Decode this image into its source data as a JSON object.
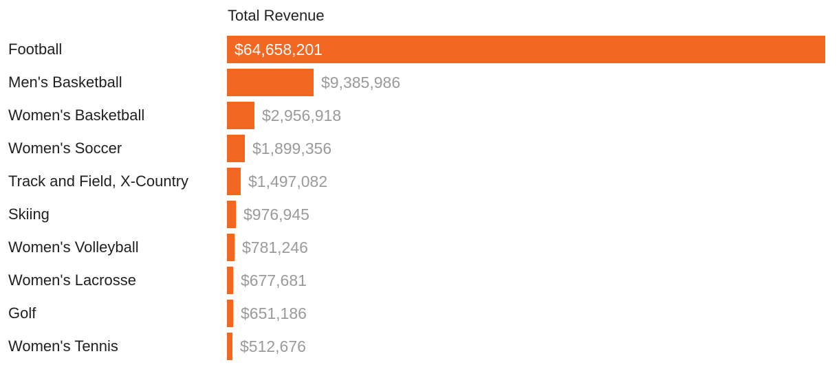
{
  "chart_data": {
    "type": "bar",
    "orientation": "horizontal",
    "column_header": "Total Revenue",
    "categories": [
      "Football",
      "Men's Basketball",
      "Women's Basketball",
      "Women's Soccer",
      "Track and Field, X-Country",
      "Skiing",
      "Women's Volleyball",
      "Women's Lacrosse",
      "Golf",
      "Women's Tennis"
    ],
    "values": [
      64658201,
      9385986,
      2956918,
      1899356,
      1497082,
      976945,
      781246,
      677681,
      651186,
      512676
    ],
    "value_labels": [
      "$64,658,201",
      "$9,385,986",
      "$2,956,918",
      "$1,899,356",
      "$1,497,082",
      "$976,945",
      "$781,246",
      "$677,681",
      "$651,186",
      "$512,676"
    ],
    "xlim": [
      0,
      64658201
    ],
    "grid": false,
    "legend": "none"
  },
  "colors": {
    "bar": "#f26722",
    "label_outside": "#9a9a9a",
    "label_inside": "#ffffff",
    "category_text": "#1f1f1f"
  }
}
